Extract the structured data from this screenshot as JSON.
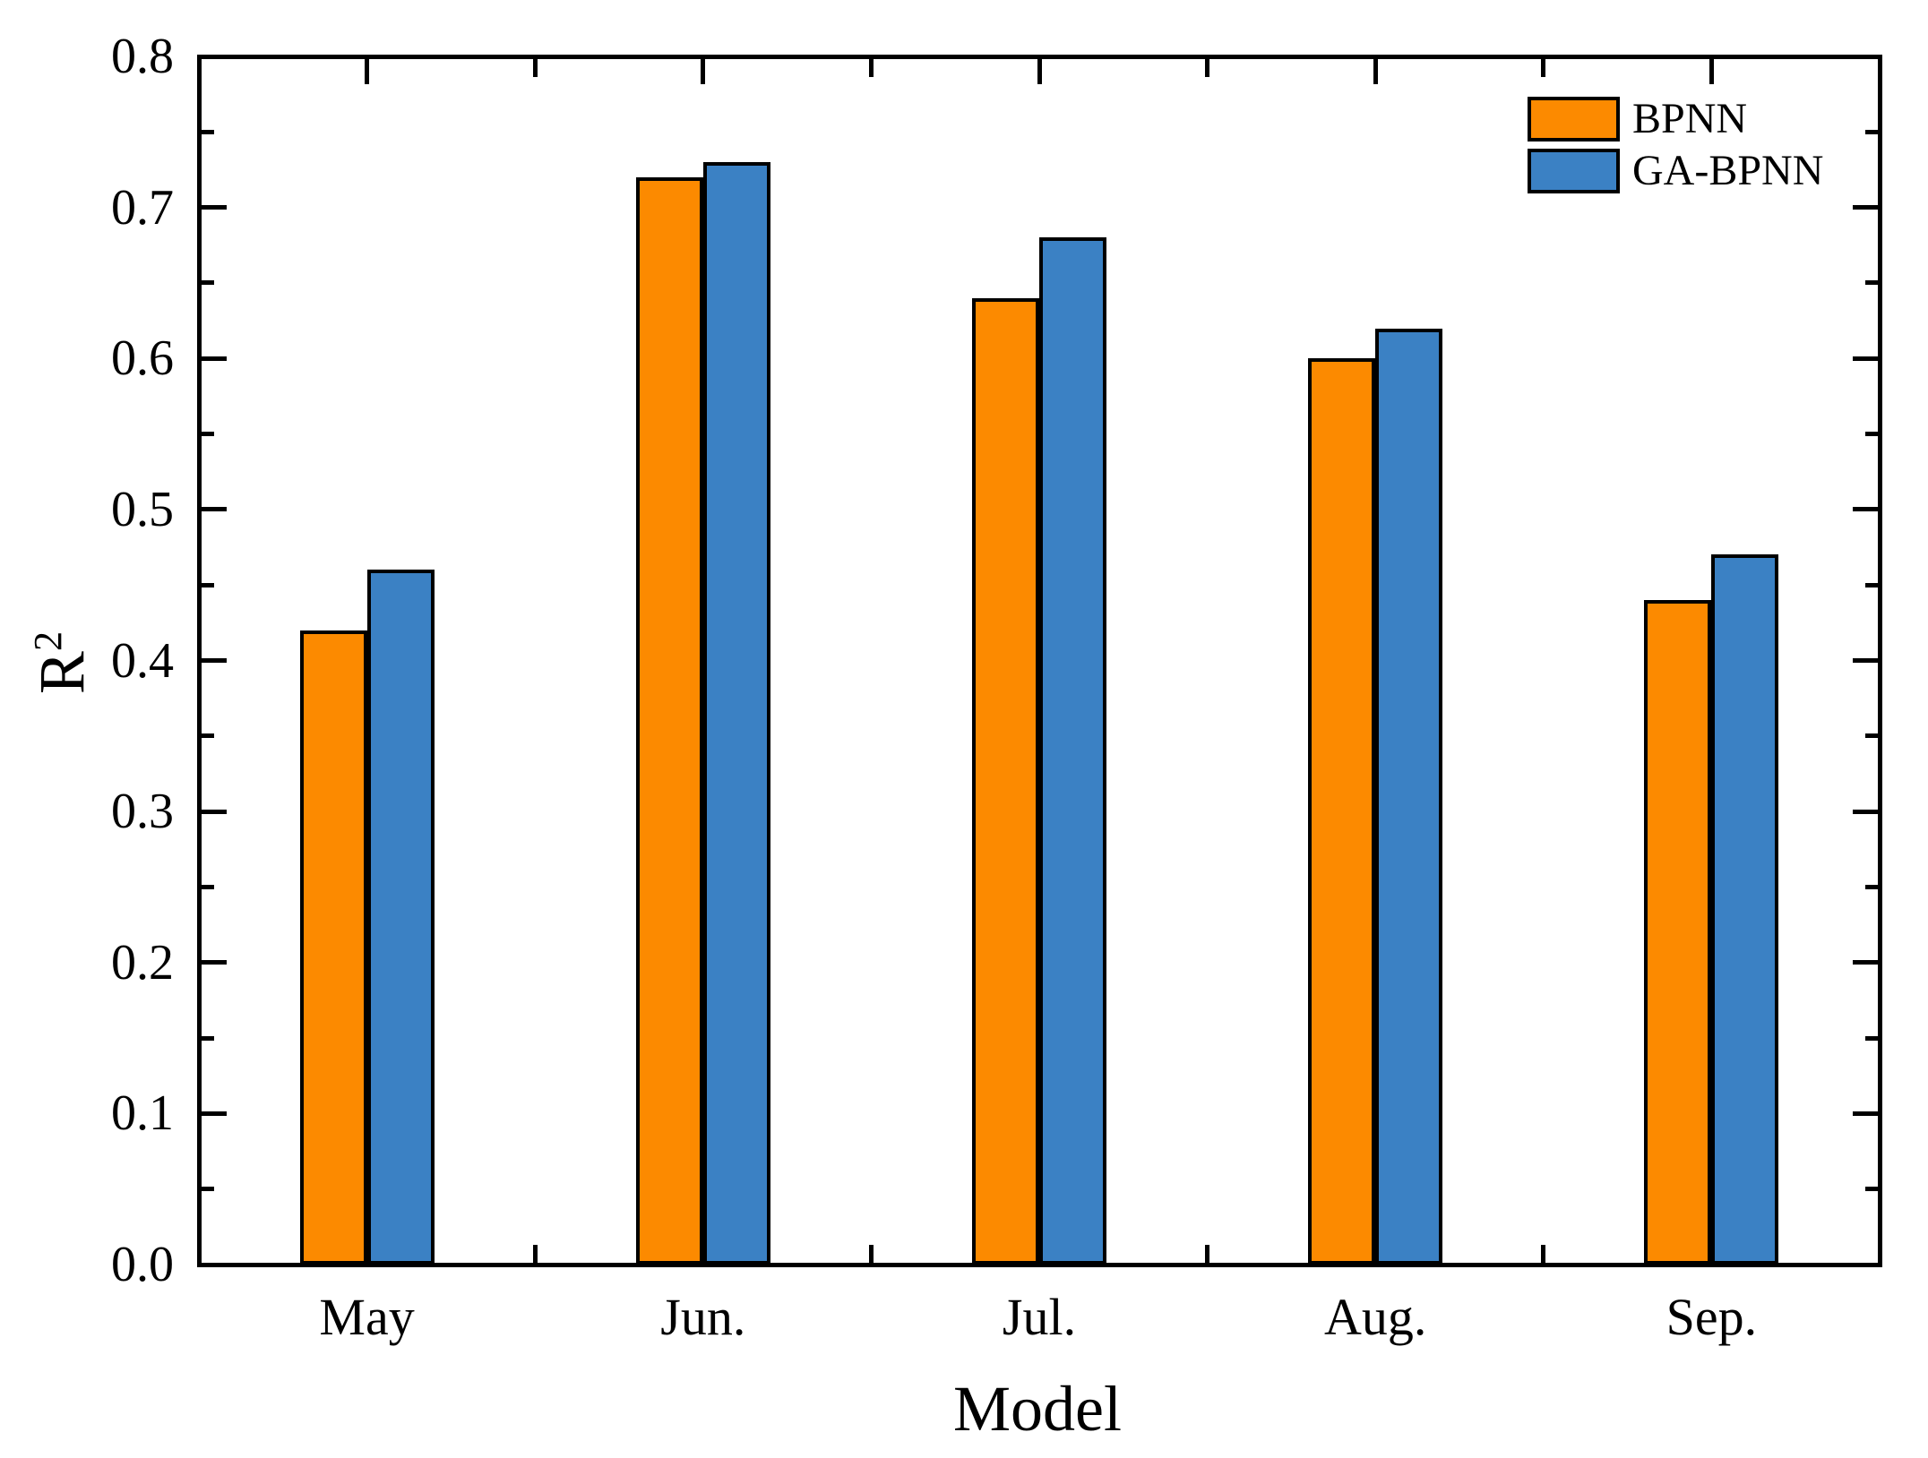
{
  "figure": {
    "background_color": "#ffffff",
    "axis_color": "#000000"
  },
  "chart_data": {
    "type": "bar",
    "title": "",
    "xlabel": "Model",
    "ylabel": "R",
    "ylabel_superscript": "2",
    "categories": [
      "May",
      "Jun.",
      "Jul.",
      "Aug.",
      "Sep."
    ],
    "series": [
      {
        "name": "BPNN",
        "color": "#FC8A00",
        "values": [
          0.42,
          0.72,
          0.64,
          0.6,
          0.44
        ]
      },
      {
        "name": "GA-BPNN",
        "color": "#3B81C4",
        "values": [
          0.46,
          0.73,
          0.68,
          0.62,
          0.47
        ]
      }
    ],
    "ylim": [
      0.0,
      0.8
    ],
    "y_major_step": 0.1,
    "y_minor_step": 0.05,
    "y_tick_labels": [
      "0.0",
      "0.1",
      "0.2",
      "0.3",
      "0.4",
      "0.5",
      "0.6",
      "0.7",
      "0.8"
    ],
    "bar_border_color": "#000000",
    "grid": false,
    "legend_position": "top-right"
  }
}
